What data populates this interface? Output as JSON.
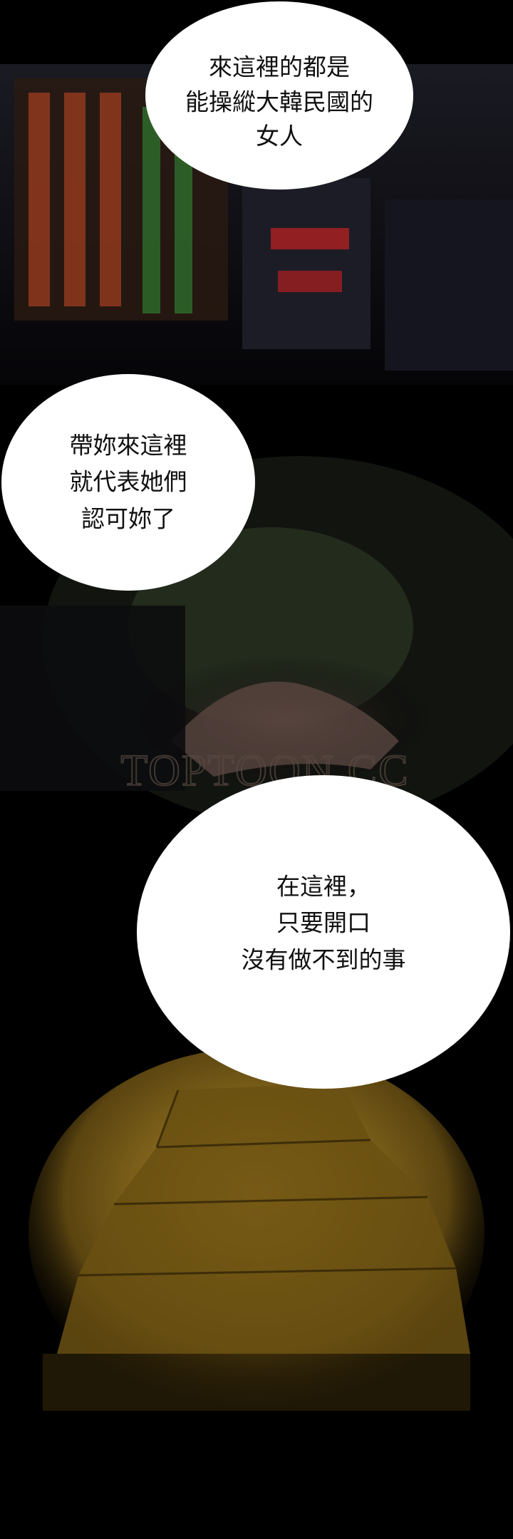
{
  "bubbles": [
    {
      "lines": [
        "來這裡的都是",
        "能操縱大韓民國的",
        "女人"
      ]
    },
    {
      "lines": [
        "帶妳來這裡",
        "就代表她們",
        "認可妳了"
      ]
    },
    {
      "lines": [
        "在這裡，",
        "只要開口",
        "沒有做不到的事"
      ]
    }
  ],
  "watermark": "TOPTOON.CC"
}
